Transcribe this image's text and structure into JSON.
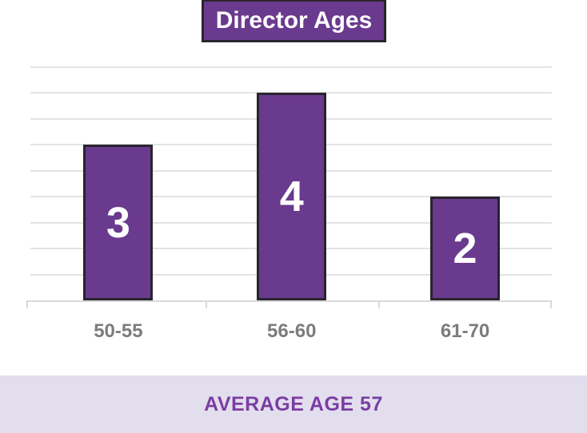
{
  "title": {
    "text": "Director Ages"
  },
  "footer": {
    "text": "AVERAGE AGE 57"
  },
  "chart_data": {
    "type": "bar",
    "title": "Director Ages",
    "categories": [
      "50-55",
      "56-60",
      "61-70"
    ],
    "values": [
      3,
      4,
      2
    ],
    "xlabel": "",
    "ylabel": "",
    "ylim": [
      0,
      4.5
    ],
    "gridline_step": 0.5,
    "grid": true,
    "legend": "none",
    "data_labels_position": "center",
    "annotation": "AVERAGE AGE 57"
  },
  "colors": {
    "background": "#ffffff",
    "bar_fill": "#6a3a8e",
    "bar_border": "#29242e",
    "title_bg": "#6a3a8e",
    "title_text": "#ffffff",
    "gridline": "#e3e3e3",
    "axis_line": "#d9d9d9",
    "axis_label": "#7c7c7c",
    "data_label": "#ffffff",
    "footer_bg": "#e3deee",
    "footer_text": "#7a3ea3"
  }
}
